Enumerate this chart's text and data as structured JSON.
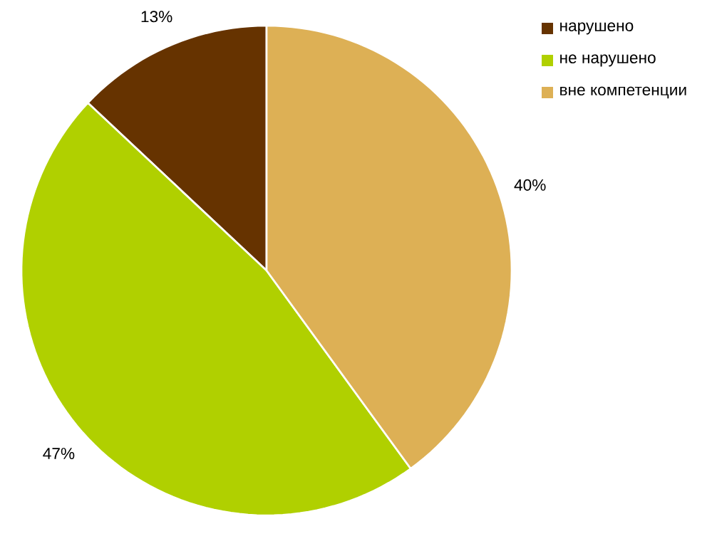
{
  "chart_data": {
    "type": "pie",
    "categories": [
      "нарушено",
      "не нарушено",
      "вне компетенции"
    ],
    "values": [
      13,
      47,
      40
    ],
    "value_labels": [
      "13%",
      "47%",
      "40%"
    ],
    "colors": [
      "#663300",
      "#b0d000",
      "#ddb055"
    ],
    "legend": "top right"
  }
}
